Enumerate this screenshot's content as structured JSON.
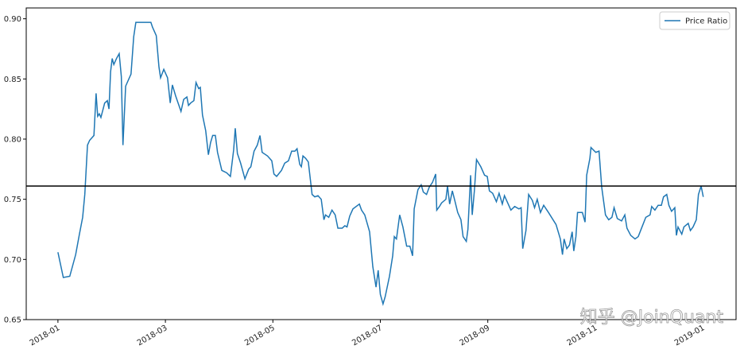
{
  "chart_data": {
    "type": "line",
    "x": [
      0,
      0.1,
      0.22,
      0.33,
      0.4,
      0.46,
      0.5,
      0.55,
      0.59,
      0.67,
      0.71,
      0.74,
      0.77,
      0.8,
      0.87,
      0.92,
      0.95,
      0.98,
      1.01,
      1.04,
      1.09,
      1.14,
      1.18,
      1.21,
      1.26,
      1.36,
      1.41,
      1.45,
      1.58,
      1.73,
      1.76,
      1.83,
      1.88,
      1.91,
      1.97,
      2.04,
      2.09,
      2.13,
      2.19,
      2.29,
      2.34,
      2.4,
      2.43,
      2.47,
      2.53,
      2.57,
      2.62,
      2.65,
      2.69,
      2.75,
      2.8,
      2.84,
      2.88,
      2.93,
      2.97,
      3.05,
      3.14,
      3.21,
      3.27,
      3.3,
      3.34,
      3.4,
      3.48,
      3.55,
      3.59,
      3.65,
      3.71,
      3.76,
      3.8,
      3.9,
      3.98,
      4.02,
      4.07,
      4.16,
      4.22,
      4.29,
      4.35,
      4.41,
      4.45,
      4.5,
      4.53,
      4.56,
      4.61,
      4.66,
      4.73,
      4.78,
      4.84,
      4.9,
      4.95,
      4.98,
      5.04,
      5.1,
      5.16,
      5.21,
      5.29,
      5.34,
      5.38,
      5.43,
      5.49,
      5.61,
      5.65,
      5.71,
      5.8,
      5.86,
      5.92,
      5.96,
      6.0,
      6.05,
      6.09,
      6.17,
      6.23,
      6.26,
      6.3,
      6.36,
      6.42,
      6.49,
      6.55,
      6.6,
      6.63,
      6.7,
      6.76,
      6.8,
      6.86,
      6.91,
      6.97,
      7.03,
      7.05,
      7.1,
      7.14,
      7.22,
      7.25,
      7.29,
      7.34,
      7.38,
      7.44,
      7.5,
      7.54,
      7.6,
      7.63,
      7.68,
      7.71,
      7.75,
      7.79,
      7.87,
      7.94,
      7.99,
      8.03,
      8.09,
      8.16,
      8.21,
      8.27,
      8.31,
      8.39,
      8.43,
      8.5,
      8.58,
      8.62,
      8.65,
      8.71,
      8.76,
      8.83,
      8.87,
      8.92,
      8.98,
      9.04,
      9.13,
      9.27,
      9.35,
      9.39,
      9.42,
      9.47,
      9.52,
      9.57,
      9.6,
      9.64,
      9.67,
      9.76,
      9.81,
      9.84,
      9.9,
      9.92,
      10.01,
      10.07,
      10.12,
      10.19,
      10.25,
      10.31,
      10.35,
      10.41,
      10.49,
      10.55,
      10.59,
      10.66,
      10.74,
      10.8,
      10.87,
      10.94,
      11.02,
      11.05,
      11.11,
      11.17,
      11.23,
      11.27,
      11.33,
      11.37,
      11.42,
      11.48,
      11.51,
      11.54,
      11.61,
      11.65,
      11.73,
      11.77,
      11.82,
      11.88,
      11.92,
      11.97,
      12.01
    ],
    "series": [
      {
        "name": "Price Ratio",
        "color": "#1f77b4",
        "values": [
          0.706,
          0.685,
          0.686,
          0.704,
          0.721,
          0.735,
          0.754,
          0.795,
          0.799,
          0.803,
          0.838,
          0.819,
          0.821,
          0.818,
          0.83,
          0.832,
          0.825,
          0.856,
          0.867,
          0.862,
          0.867,
          0.871,
          0.852,
          0.795,
          0.844,
          0.854,
          0.885,
          0.897,
          0.897,
          0.897,
          0.893,
          0.886,
          0.86,
          0.851,
          0.858,
          0.851,
          0.83,
          0.845,
          0.836,
          0.823,
          0.833,
          0.835,
          0.828,
          0.83,
          0.832,
          0.847,
          0.842,
          0.843,
          0.82,
          0.807,
          0.787,
          0.797,
          0.803,
          0.803,
          0.789,
          0.774,
          0.772,
          0.769,
          0.791,
          0.809,
          0.788,
          0.78,
          0.767,
          0.775,
          0.777,
          0.79,
          0.795,
          0.803,
          0.789,
          0.786,
          0.782,
          0.771,
          0.769,
          0.774,
          0.78,
          0.782,
          0.79,
          0.79,
          0.792,
          0.779,
          0.777,
          0.786,
          0.784,
          0.781,
          0.754,
          0.752,
          0.753,
          0.75,
          0.733,
          0.737,
          0.735,
          0.741,
          0.737,
          0.726,
          0.726,
          0.728,
          0.727,
          0.736,
          0.742,
          0.746,
          0.741,
          0.737,
          0.723,
          0.694,
          0.677,
          0.691,
          0.671,
          0.663,
          0.669,
          0.686,
          0.703,
          0.719,
          0.717,
          0.737,
          0.727,
          0.711,
          0.711,
          0.703,
          0.742,
          0.758,
          0.762,
          0.756,
          0.754,
          0.76,
          0.764,
          0.771,
          0.741,
          0.744,
          0.747,
          0.75,
          0.761,
          0.746,
          0.757,
          0.75,
          0.739,
          0.733,
          0.719,
          0.715,
          0.725,
          0.77,
          0.737,
          0.757,
          0.783,
          0.777,
          0.77,
          0.769,
          0.757,
          0.755,
          0.748,
          0.755,
          0.746,
          0.753,
          0.745,
          0.741,
          0.744,
          0.742,
          0.743,
          0.709,
          0.724,
          0.754,
          0.749,
          0.743,
          0.75,
          0.739,
          0.745,
          0.739,
          0.729,
          0.717,
          0.704,
          0.717,
          0.709,
          0.712,
          0.723,
          0.707,
          0.719,
          0.739,
          0.739,
          0.731,
          0.77,
          0.784,
          0.793,
          0.789,
          0.79,
          0.76,
          0.737,
          0.733,
          0.735,
          0.743,
          0.734,
          0.732,
          0.737,
          0.726,
          0.72,
          0.717,
          0.719,
          0.727,
          0.735,
          0.737,
          0.744,
          0.741,
          0.745,
          0.745,
          0.752,
          0.754,
          0.745,
          0.74,
          0.743,
          0.72,
          0.727,
          0.721,
          0.727,
          0.73,
          0.724,
          0.727,
          0.733,
          0.754,
          0.761,
          0.752
        ]
      }
    ],
    "hline": 0.761,
    "hline_color": "#000000",
    "xlim": [
      -0.59,
      12.62
    ],
    "xticks": [
      {
        "value": 0,
        "label": "2018-01"
      },
      {
        "value": 2,
        "label": "2018-03"
      },
      {
        "value": 4,
        "label": "2018-05"
      },
      {
        "value": 6,
        "label": "2018-07"
      },
      {
        "value": 8,
        "label": "2018-09"
      },
      {
        "value": 10,
        "label": "2018-11"
      },
      {
        "value": 12,
        "label": "2019-01"
      }
    ],
    "ylim": [
      0.65,
      0.909
    ],
    "yticks": [
      0.65,
      {
        "value": 0.7,
        "label": "0.70"
      },
      0.75,
      {
        "value": 0.8,
        "label": "0.80"
      },
      0.85,
      {
        "value": 0.9,
        "label": "0.90"
      }
    ],
    "legend": "upper right",
    "grid": false,
    "watermark": "知乎 @JoinQuant"
  }
}
